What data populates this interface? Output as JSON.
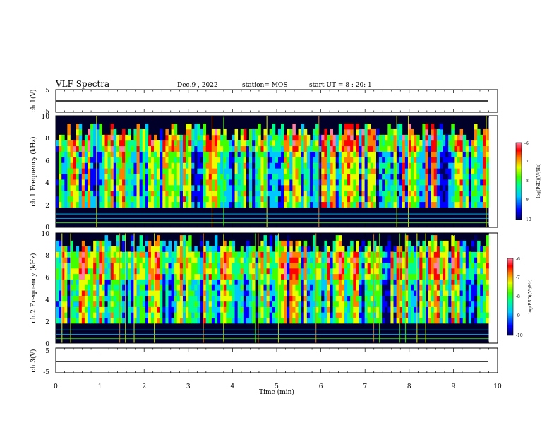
{
  "header": {
    "title": "VLF Spectra",
    "date": "Dec.9 , 2022",
    "station": "station= MOS",
    "start": "start  UT =   8 : 20: 1"
  },
  "chart_data": [
    {
      "type": "line",
      "panel": "ch1 waveform",
      "ylabel": "ch.1(V)",
      "yticks": [
        "5",
        "-5"
      ],
      "ylim": [
        -5,
        5
      ],
      "xlim": [
        0,
        10
      ],
      "series": [
        {
          "x": [
            0,
            9.8
          ],
          "values": [
            0,
            0
          ]
        }
      ]
    },
    {
      "type": "heatmap",
      "panel": "ch1 spectrogram",
      "ylabel": "ch.1 Frequency (kHz)",
      "yticks": [
        "0",
        "2",
        "4",
        "6",
        "8",
        "10"
      ],
      "ylim": [
        0,
        10
      ],
      "xlim": [
        0,
        9.8
      ],
      "colorbar": {
        "label": "log(PSD)(V²/Hz)",
        "ticks": [
          "-6",
          "-7",
          "-8",
          "-9",
          "-10"
        ],
        "range": [
          -10,
          -6
        ]
      }
    },
    {
      "type": "heatmap",
      "panel": "ch2 spectrogram",
      "ylabel": "ch.2 Frequency (kHz)",
      "yticks": [
        "0",
        "2",
        "4",
        "6",
        "8",
        "10"
      ],
      "ylim": [
        0,
        10
      ],
      "xlim": [
        0,
        9.8
      ],
      "colorbar": {
        "label": "log(PSD)(V²/Hz)",
        "ticks": [
          "-6",
          "-7",
          "-8",
          "-9",
          "-10"
        ],
        "range": [
          -10,
          -6
        ]
      }
    },
    {
      "type": "line",
      "panel": "ch3 waveform",
      "ylabel": "ch.3(V)",
      "yticks": [
        "5",
        "-5"
      ],
      "ylim": [
        -5,
        5
      ],
      "xlim": [
        0,
        10
      ],
      "xlabel": "Time  (min)",
      "xticks": [
        "0",
        "1",
        "2",
        "3",
        "4",
        "5",
        "6",
        "7",
        "8",
        "9",
        "10"
      ],
      "series": [
        {
          "x": [
            0,
            9.8
          ],
          "values": [
            0,
            0
          ]
        }
      ]
    }
  ],
  "colors": {
    "background": "#ffffff",
    "axis": "#000000",
    "spectro_dark": "#000028",
    "colormap": [
      "#000060",
      "#0000ff",
      "#00c8ff",
      "#00ff90",
      "#40ff00",
      "#e8ff00",
      "#ff8000",
      "#ff0000",
      "#ff80a0"
    ]
  }
}
